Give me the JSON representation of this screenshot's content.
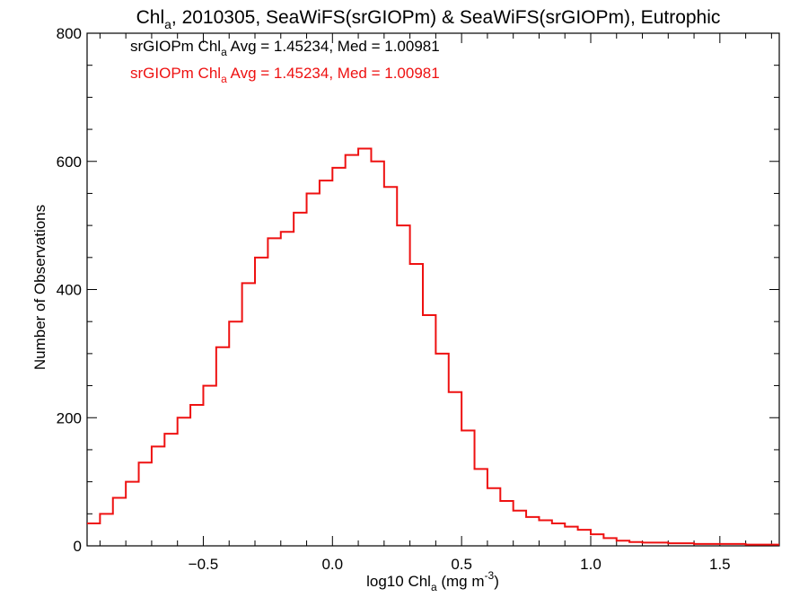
{
  "chart_data": {
    "type": "line",
    "title": {
      "main": "Chl",
      "sub": "a",
      "rest": ", 2010305, SeaWiFS(srGIOPm) & SeaWiFS(srGIOPm), Eutrophic"
    },
    "xlabel": {
      "main": "log10 Chl",
      "sub": "a",
      "rest": " (mg m",
      "sup": "-3",
      "end": ")"
    },
    "ylabel": "Number of Observations",
    "xlim": [
      -0.95,
      1.73
    ],
    "ylim": [
      0,
      800
    ],
    "x_ticks": [
      -0.5,
      0.0,
      0.5,
      1.0,
      1.5
    ],
    "x_tick_labels": [
      "−0.5",
      "0.0",
      "0.5",
      "1.0",
      "1.5"
    ],
    "y_ticks": [
      0,
      200,
      400,
      600,
      800
    ],
    "y_tick_labels": [
      "0",
      "200",
      "400",
      "600",
      "800"
    ],
    "annotations": [
      {
        "pre": "srGIOPm Chl",
        "sub": "a",
        "post": " Avg = 1.45234, Med = 1.00981",
        "color": "#000000"
      },
      {
        "pre": "srGIOPm Chl",
        "sub": "a",
        "post": " Avg = 1.45234, Med = 1.00981",
        "color": "#ee1111"
      }
    ],
    "series": [
      {
        "color": "#ee1111",
        "x": [
          -0.95,
          -0.9,
          -0.85,
          -0.8,
          -0.75,
          -0.7,
          -0.65,
          -0.6,
          -0.55,
          -0.5,
          -0.45,
          -0.4,
          -0.35,
          -0.3,
          -0.25,
          -0.2,
          -0.15,
          -0.1,
          -0.05,
          0.0,
          0.05,
          0.1,
          0.15,
          0.2,
          0.25,
          0.3,
          0.35,
          0.4,
          0.45,
          0.5,
          0.55,
          0.6,
          0.65,
          0.7,
          0.75,
          0.8,
          0.85,
          0.9,
          0.95,
          1.0,
          1.05,
          1.1,
          1.15,
          1.2,
          1.3,
          1.4,
          1.5,
          1.6,
          1.73
        ],
        "y": [
          35,
          50,
          75,
          100,
          130,
          155,
          175,
          200,
          220,
          250,
          310,
          350,
          410,
          450,
          480,
          490,
          520,
          550,
          570,
          590,
          610,
          620,
          600,
          560,
          500,
          440,
          360,
          300,
          240,
          180,
          120,
          90,
          70,
          55,
          45,
          40,
          35,
          30,
          25,
          18,
          12,
          8,
          6,
          5,
          4,
          3,
          3,
          2,
          2
        ]
      }
    ]
  }
}
